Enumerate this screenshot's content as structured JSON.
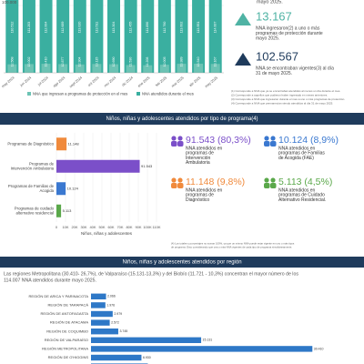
{
  "chart_data": [
    {
      "type": "bar",
      "orientation": "vertical",
      "categories": [
        "may 2024",
        "jun 2024",
        "jul 2024",
        "ago 2024",
        "sept 2024",
        "oct 2024",
        "nov 2024",
        "dic 2024",
        "ene 2025",
        "feb 2025",
        "mar 2025",
        "abr 2025",
        "may 2025"
      ],
      "series": [
        {
          "name": "NNA atendidos durante el mes",
          "color": "#3aafa0",
          "values": [
            110512,
            111203,
            112004,
            112689,
            113020,
            113511,
            113304,
            112455,
            111890,
            112760,
            113602,
            113951,
            114007
          ],
          "value_labels": [
            "110.512",
            "111.203",
            "112.004",
            "112.689",
            "113.020",
            "113.511",
            "113.304",
            "112.455",
            "111.890",
            "112.760",
            "113.602",
            "113.951",
            "114.007"
          ]
        },
        {
          "name": "NNA que ingresan a programas de protección en el mes",
          "color": "#6cc3b4",
          "values": [
            12568,
            13002,
            13410,
            12877,
            12304,
            13115,
            12690,
            11530,
            11208,
            12005,
            13389,
            13540,
            13167
          ],
          "value_labels": [
            "12.568",
            "13.002",
            "13.410",
            "12.877",
            "12.304",
            "13.115",
            "12.690",
            "11.530",
            "11.208",
            "12.005",
            "13.389",
            "13.540",
            "13.167"
          ]
        }
      ],
      "ylim": [
        0,
        100000
      ],
      "yticks": [
        {
          "value": 100000,
          "label": "100.000"
        }
      ]
    },
    {
      "type": "hbar",
      "x_label": "Niños, niñas y adolescentes",
      "categories": [
        "Programas de Diagnóstico",
        "Programas de Intervención Ambulatoria",
        "Programas de Familias de Acogida",
        "Programas de cuidado alternativo residencial"
      ],
      "values": [
        11148,
        91543,
        10124,
        5113
      ],
      "value_labels": [
        "11.148",
        "91.543",
        "10.124",
        "5.113"
      ],
      "colors": [
        "#f08a3c",
        "#7b4fc9",
        "#3a78d0",
        "#5aa84a"
      ],
      "xlim": [
        0,
        110000
      ],
      "xticks": [
        0,
        {
          "value": 10000,
          "label": "10K"
        },
        {
          "value": 20000,
          "label": "20K"
        },
        {
          "value": 30000,
          "label": "30K"
        },
        {
          "value": 40000,
          "label": "40K"
        },
        {
          "value": 50000,
          "label": "50K"
        },
        {
          "value": 60000,
          "label": "60K"
        },
        {
          "value": 70000,
          "label": "70K"
        },
        {
          "value": 80000,
          "label": "80K"
        },
        {
          "value": 90000,
          "label": "90K"
        },
        {
          "value": 100000,
          "label": "100K"
        },
        {
          "value": 110000,
          "label": "110K"
        }
      ]
    },
    {
      "type": "hbar",
      "color": "#2e78c7",
      "categories": [
        "REGIÓN DE ARICA Y PARINACOTA",
        "REGIÓN DE TARAPACÁ",
        "REGIÓN DE ANTOFAGASTA",
        "REGIÓN DE ATACAMA",
        "REGIÓN DE COQUIMBO",
        "REGIÓN DE VALPARAÍSO",
        "REGIÓN METROPOLITANA",
        "REGIÓN DE O'HIGGINS",
        "REGIÓN DEL MAULE"
      ],
      "values": [
        2066,
        1976,
        2979,
        2572,
        3745,
        15131,
        30410,
        6930,
        7806
      ],
      "value_labels": [
        "2.066",
        "1.976",
        "2.979",
        "2.572",
        "3.745",
        "15.131",
        "30.410",
        "6.930",
        "7.806"
      ],
      "xlim": [
        0,
        32000
      ]
    }
  ],
  "top_stats": {
    "cut_line": "mayo 2025.",
    "items": [
      {
        "value": "13.167",
        "lines": [
          "NNA ingresaron(2) a uno o más",
          "programas de protección durante",
          "mayo 2025."
        ]
      },
      {
        "value": "102.567",
        "lines": [
          "NNA se encontraban vigentes(3) al día",
          "31 de mayo 2025."
        ]
      }
    ],
    "notes": [
      "(1) Corresponde a NNA que ya se encontraban atendidos al menos un día durante el mes.",
      "(2) Corresponde a aquellos que pudieron haber ingresado en meses anteriores.",
      "(3) Corresponde a NNA que ingresaron durante el mes a uno o más programas de protección.",
      "(4) Corresponde a NNA que permanecían siendo atendidos al día 31 de mayo 2025."
    ]
  },
  "section_titles": [
    "Niños, niñas y adolescentes atendidos por tipo de programa(4)",
    "Niños, niñas y adolescentes atendidos por región"
  ],
  "program_stats": [
    {
      "value": "91.543 (80,3%)",
      "lines": [
        "NNA atendidos en",
        "programas de",
        "Intervención",
        "Ambulatoria"
      ]
    },
    {
      "value": "10.124 (8,9%)",
      "lines": [
        "NNA atendidos en",
        "programas de Familias",
        "de Acogida (FAE)"
      ]
    },
    {
      "value": "11.148 (9,8%)",
      "lines": [
        "NNA atendidos en",
        "programas de",
        "Diagnóstico"
      ]
    },
    {
      "value": "5.113 (4,5%)",
      "lines": [
        "NNA atendidos en",
        "programas de Cuidado",
        "Alternativo Residencial."
      ]
    }
  ],
  "program_note": [
    "(4) Los totales y porcentajes no suman 100%, ya que un mismo NNA puede estar vigente en uno o más tipos",
    "de programa. Esto considerando que una o más NNA vigentes de cada tipo de programa simultáneamente."
  ],
  "region_text": [
    "Las regiones Metropolitana (30.410- 26,7%), de Valparaíso (15.131-13,3%) y del Biobío (11.721 - 10,3%) concentran el mayor número de los",
    "114.007 NNA atendidos durante mayo 2025."
  ]
}
